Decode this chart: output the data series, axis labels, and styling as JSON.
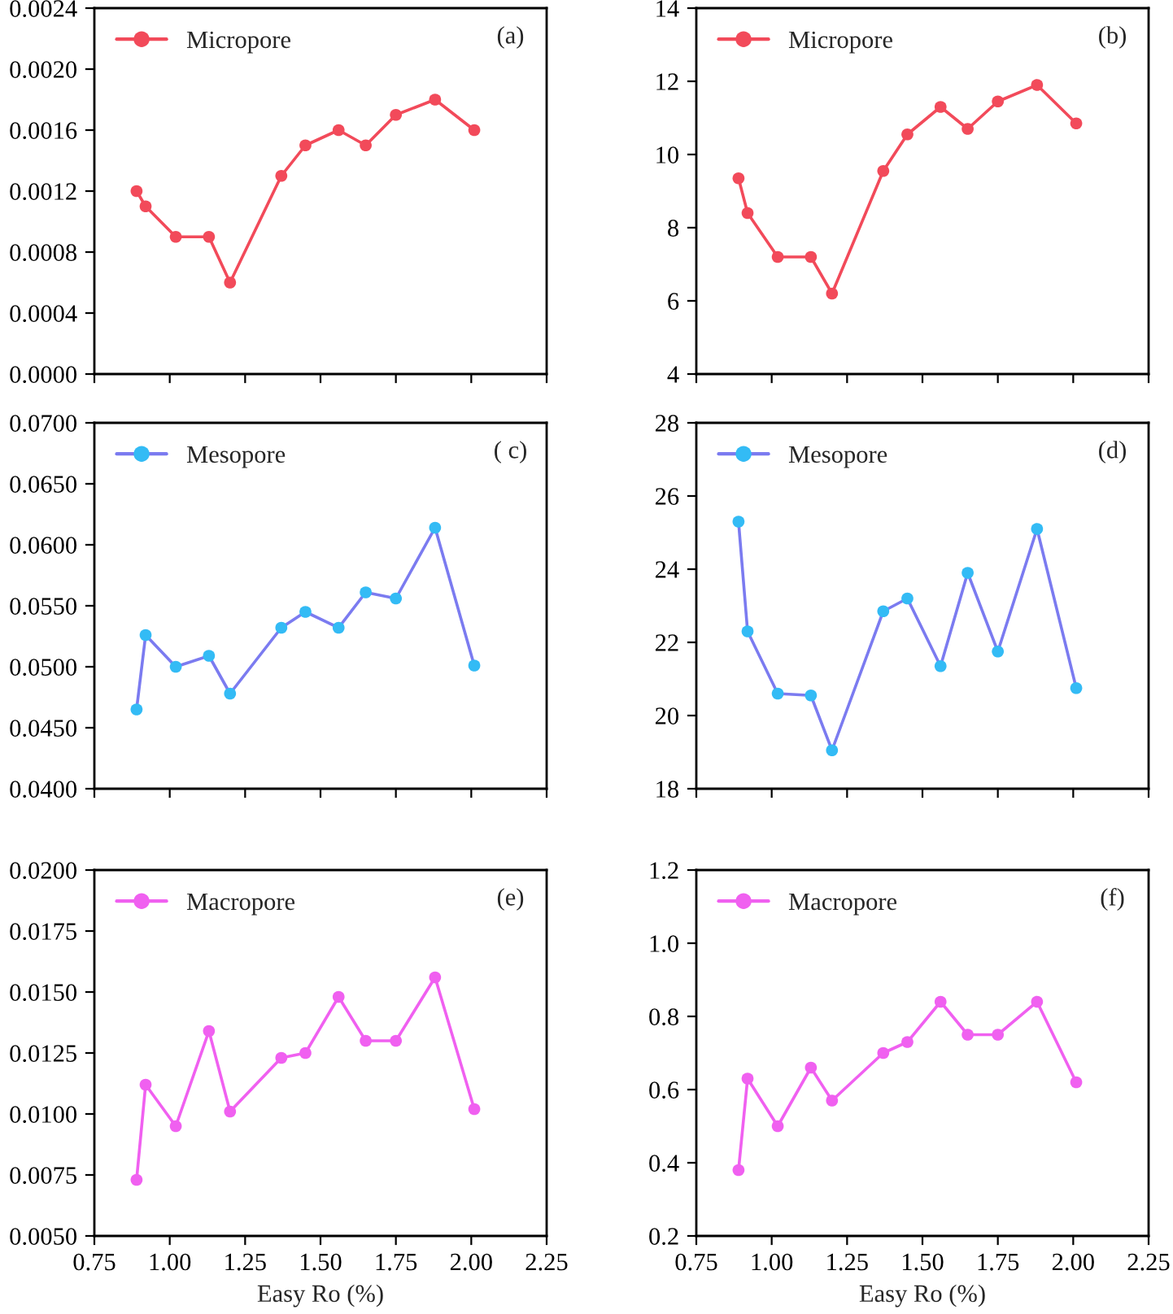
{
  "chart_data": [
    {
      "type": "line",
      "x": [
        0.89,
        0.92,
        1.02,
        1.13,
        1.2,
        1.37,
        1.45,
        1.56,
        1.65,
        1.75,
        1.88,
        2.01
      ],
      "series": [
        {
          "name": "Micropore",
          "color": "#f24a5a",
          "values": [
            0.0012,
            0.0011,
            0.0009,
            0.0009,
            0.0006,
            0.0013,
            0.0015,
            0.0016,
            0.0015,
            0.0017,
            0.0018,
            0.0016
          ]
        }
      ],
      "annotations": [
        "(a)"
      ],
      "marker": "circle",
      "legend": "top left",
      "grid": false,
      "tick_labels": "y",
      "xlim": [
        0.75,
        2.25
      ],
      "xticks": [
        {
          "value": 0.75,
          "label": null
        },
        {
          "value": 1.0,
          "label": null
        },
        {
          "value": 1.25,
          "label": null
        },
        {
          "value": 1.5,
          "label": null
        },
        {
          "value": 1.75,
          "label": null
        },
        {
          "value": 2.0,
          "label": null
        },
        {
          "value": 2.25,
          "label": null
        }
      ],
      "ylim": [
        0,
        0.0024
      ],
      "yticks": [
        {
          "value": 0,
          "label": "0.0000"
        },
        {
          "value": 0.0004,
          "label": "0.0004"
        },
        {
          "value": 0.0008,
          "label": "0.0008"
        },
        {
          "value": 0.0012,
          "label": "0.0012"
        },
        {
          "value": 0.0016,
          "label": "0.0016"
        },
        {
          "value": 0.002,
          "label": "0.0020"
        },
        {
          "value": 0.0024,
          "label": "0.0024"
        }
      ]
    },
    {
      "type": "line",
      "x": [
        0.89,
        0.92,
        1.02,
        1.13,
        1.2,
        1.37,
        1.45,
        1.56,
        1.65,
        1.75,
        1.88,
        2.01
      ],
      "series": [
        {
          "name": "Micropore",
          "color": "#f24a5a",
          "values": [
            9.35,
            8.4,
            7.2,
            7.2,
            6.2,
            9.55,
            10.55,
            11.3,
            10.7,
            11.45,
            11.9,
            10.85
          ]
        }
      ],
      "annotations": [
        "(b)"
      ],
      "marker": "circle",
      "legend": "top left",
      "grid": false,
      "tick_labels": "y",
      "xlim": [
        0.75,
        2.25
      ],
      "xticks": [
        {
          "value": 0.75,
          "label": null
        },
        {
          "value": 1.0,
          "label": null
        },
        {
          "value": 1.25,
          "label": null
        },
        {
          "value": 1.5,
          "label": null
        },
        {
          "value": 1.75,
          "label": null
        },
        {
          "value": 2.0,
          "label": null
        },
        {
          "value": 2.25,
          "label": null
        }
      ],
      "ylim": [
        4,
        14
      ],
      "yticks": [
        4,
        6,
        8,
        10,
        12,
        14
      ]
    },
    {
      "type": "line",
      "x": [
        0.89,
        0.92,
        1.02,
        1.13,
        1.2,
        1.37,
        1.45,
        1.56,
        1.65,
        1.75,
        1.88,
        2.01
      ],
      "series": [
        {
          "name": "Mesopore",
          "color": "#7b7bf0",
          "colors": [
            "#33bbf5",
            "#33bbf5",
            "#33bbf5",
            "#33bbf5",
            "#33bbf5",
            "#33bbf5",
            "#33bbf5",
            "#33bbf5",
            "#33bbf5",
            "#33bbf5",
            "#33bbf5",
            "#33bbf5"
          ],
          "values": [
            0.0465,
            0.0526,
            0.05,
            0.0509,
            0.0478,
            0.0532,
            0.0545,
            0.0532,
            0.0561,
            0.0556,
            0.0614,
            0.0501
          ]
        }
      ],
      "annotations": [
        "( c)"
      ],
      "marker": "circle",
      "legend": "top left",
      "grid": false,
      "tick_labels": "y",
      "xlim": [
        0.75,
        2.25
      ],
      "xticks": [
        {
          "value": 0.75,
          "label": null
        },
        {
          "value": 1.0,
          "label": null
        },
        {
          "value": 1.25,
          "label": null
        },
        {
          "value": 1.5,
          "label": null
        },
        {
          "value": 1.75,
          "label": null
        },
        {
          "value": 2.0,
          "label": null
        },
        {
          "value": 2.25,
          "label": null
        }
      ],
      "ylim": [
        0.04,
        0.07
      ],
      "yticks": [
        {
          "value": 0.04,
          "label": "0.0400"
        },
        {
          "value": 0.045,
          "label": "0.0450"
        },
        {
          "value": 0.05,
          "label": "0.0500"
        },
        {
          "value": 0.055,
          "label": "0.0550"
        },
        {
          "value": 0.06,
          "label": "0.0600"
        },
        {
          "value": 0.065,
          "label": "0.0650"
        },
        {
          "value": 0.07,
          "label": "0.0700"
        }
      ]
    },
    {
      "type": "line",
      "x": [
        0.89,
        0.92,
        1.02,
        1.13,
        1.2,
        1.37,
        1.45,
        1.56,
        1.65,
        1.75,
        1.88,
        2.01
      ],
      "series": [
        {
          "name": "Mesopore",
          "color": "#7b7bf0",
          "colors": [
            "#33bbf5",
            "#33bbf5",
            "#33bbf5",
            "#33bbf5",
            "#33bbf5",
            "#33bbf5",
            "#33bbf5",
            "#33bbf5",
            "#33bbf5",
            "#33bbf5",
            "#33bbf5",
            "#33bbf5"
          ],
          "values": [
            25.3,
            22.3,
            20.6,
            20.55,
            19.05,
            22.85,
            23.2,
            21.35,
            23.9,
            21.75,
            25.1,
            20.75
          ]
        }
      ],
      "annotations": [
        "(d)"
      ],
      "marker": "circle",
      "legend": "top left",
      "grid": false,
      "tick_labels": "y",
      "xlim": [
        0.75,
        2.25
      ],
      "xticks": [
        {
          "value": 0.75,
          "label": null
        },
        {
          "value": 1.0,
          "label": null
        },
        {
          "value": 1.25,
          "label": null
        },
        {
          "value": 1.5,
          "label": null
        },
        {
          "value": 1.75,
          "label": null
        },
        {
          "value": 2.0,
          "label": null
        },
        {
          "value": 2.25,
          "label": null
        }
      ],
      "ylim": [
        18,
        28
      ],
      "yticks": [
        18,
        20,
        22,
        24,
        26,
        28
      ]
    },
    {
      "type": "line",
      "x": [
        0.89,
        0.92,
        1.02,
        1.13,
        1.2,
        1.37,
        1.45,
        1.56,
        1.65,
        1.75,
        1.88,
        2.01
      ],
      "series": [
        {
          "name": "Macropore",
          "color": "#f060f0",
          "values": [
            0.0073,
            0.0112,
            0.0095,
            0.0134,
            0.0101,
            0.0123,
            0.0125,
            0.0148,
            0.013,
            0.013,
            0.0156,
            0.0102
          ]
        }
      ],
      "annotations": [
        "(e)"
      ],
      "marker": "circle",
      "legend": "top left",
      "grid": false,
      "xlabel": "Easy Ro (%)",
      "xlim": [
        0.75,
        2.25
      ],
      "xticks": [
        {
          "value": 0.75,
          "label": "0.75"
        },
        {
          "value": 1.0,
          "label": "1.00"
        },
        {
          "value": 1.25,
          "label": "1.25"
        },
        {
          "value": 1.5,
          "label": "1.50"
        },
        {
          "value": 1.75,
          "label": "1.75"
        },
        {
          "value": 2.0,
          "label": "2.00"
        },
        {
          "value": 2.25,
          "label": "2.25"
        }
      ],
      "ylim": [
        0.005,
        0.02
      ],
      "yticks": [
        {
          "value": 0.005,
          "label": "0.0050"
        },
        {
          "value": 0.0075,
          "label": "0.0075"
        },
        {
          "value": 0.01,
          "label": "0.0100"
        },
        {
          "value": 0.0125,
          "label": "0.0125"
        },
        {
          "value": 0.015,
          "label": "0.0150"
        },
        {
          "value": 0.0175,
          "label": "0.0175"
        },
        {
          "value": 0.02,
          "label": "0.0200"
        }
      ]
    },
    {
      "type": "line",
      "x": [
        0.89,
        0.92,
        1.02,
        1.13,
        1.2,
        1.37,
        1.45,
        1.56,
        1.65,
        1.75,
        1.88,
        2.01
      ],
      "series": [
        {
          "name": "Macropore",
          "color": "#f060f0",
          "values": [
            0.38,
            0.63,
            0.5,
            0.66,
            0.57,
            0.7,
            0.73,
            0.84,
            0.75,
            0.75,
            0.84,
            0.62
          ]
        }
      ],
      "annotations": [
        "(f)"
      ],
      "marker": "circle",
      "legend": "top left",
      "grid": false,
      "xlabel": "Easy Ro (%)",
      "xlim": [
        0.75,
        2.25
      ],
      "xticks": [
        {
          "value": 0.75,
          "label": "0.75"
        },
        {
          "value": 1.0,
          "label": "1.00"
        },
        {
          "value": 1.25,
          "label": "1.25"
        },
        {
          "value": 1.5,
          "label": "1.50"
        },
        {
          "value": 1.75,
          "label": "1.75"
        },
        {
          "value": 2.0,
          "label": "2.00"
        },
        {
          "value": 2.25,
          "label": "2.25"
        }
      ],
      "ylim": [
        0.2,
        1.2
      ],
      "yticks": [
        0.2,
        0.4,
        0.6,
        0.8,
        {
          "value": 1,
          "label": "1.0"
        },
        1.2
      ]
    }
  ]
}
